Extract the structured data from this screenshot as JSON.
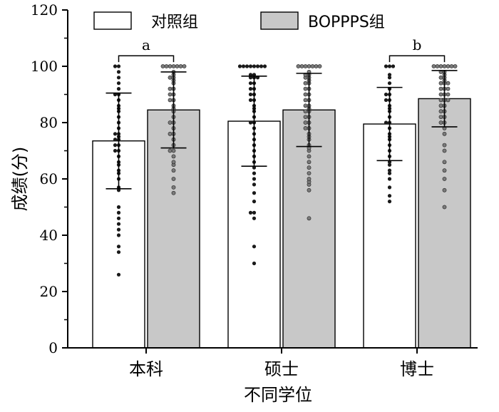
{
  "chart_data": {
    "type": "bar",
    "title": "",
    "xlabel": "不同学位",
    "ylabel": "成绩(分)",
    "ylim": [
      0,
      120
    ],
    "yticks": [
      0,
      20,
      40,
      60,
      80,
      100,
      120
    ],
    "categories": [
      "本科",
      "硕士",
      "博士"
    ],
    "legend": {
      "position": "top"
    },
    "colors": {
      "control": "#ffffff",
      "boppps": "#c8c8c8",
      "control_point": "#1a1a1a",
      "boppps_point": "#7a7a7a"
    },
    "series": [
      {
        "name": "对照组",
        "values": [
          73.5,
          80.5,
          79.5
        ],
        "sd": [
          17,
          16,
          13
        ],
        "points": [
          [
            26,
            34,
            36,
            40,
            42,
            44,
            46,
            48,
            50,
            56,
            57,
            60,
            62,
            63,
            65,
            66,
            68,
            70,
            70,
            72,
            72,
            74,
            74,
            75,
            76,
            76,
            78,
            80,
            82,
            84,
            85,
            86,
            88,
            90,
            90,
            92,
            94,
            96,
            98,
            100,
            100
          ],
          [
            30,
            36,
            46,
            48,
            48,
            52,
            55,
            58,
            60,
            62,
            64,
            66,
            68,
            70,
            72,
            74,
            76,
            78,
            80,
            80,
            82,
            84,
            85,
            86,
            88,
            88,
            90,
            90,
            92,
            92,
            94,
            94,
            96,
            96,
            96,
            97,
            97,
            100,
            100,
            100,
            100,
            100,
            100,
            100,
            100
          ],
          [
            52,
            54,
            57,
            60,
            62,
            63,
            65,
            66,
            68,
            70,
            72,
            74,
            75,
            76,
            78,
            80,
            80,
            82,
            84,
            85,
            86,
            88,
            88,
            90,
            90,
            92,
            94,
            96,
            97,
            100,
            100,
            100
          ]
        ]
      },
      {
        "name": "BOPPPS组",
        "values": [
          84.5,
          84.5,
          88.5
        ],
        "sd": [
          13.5,
          13,
          10
        ],
        "points": [
          [
            55,
            57,
            60,
            63,
            65,
            66,
            68,
            70,
            70,
            72,
            74,
            76,
            76,
            78,
            80,
            80,
            82,
            84,
            85,
            86,
            88,
            88,
            90,
            90,
            92,
            92,
            94,
            95,
            96,
            96,
            97,
            98,
            100,
            100,
            100,
            100,
            100,
            100,
            100
          ],
          [
            46,
            56,
            58,
            59,
            60,
            62,
            64,
            66,
            68,
            70,
            71,
            72,
            74,
            75,
            76,
            78,
            78,
            80,
            80,
            82,
            82,
            84,
            84,
            85,
            86,
            86,
            88,
            88,
            90,
            90,
            92,
            92,
            94,
            94,
            95,
            96,
            96,
            97,
            97,
            98,
            100,
            100,
            100,
            100,
            100,
            100,
            100
          ],
          [
            50,
            56,
            60,
            63,
            66,
            70,
            72,
            76,
            78,
            80,
            80,
            82,
            82,
            84,
            84,
            86,
            86,
            88,
            88,
            88,
            90,
            90,
            90,
            92,
            92,
            92,
            94,
            94,
            94,
            95,
            96,
            96,
            97,
            98,
            98,
            100,
            100,
            100,
            100,
            100,
            100,
            100
          ]
        ]
      }
    ],
    "annotations": [
      {
        "text": "a",
        "category_index": 0,
        "y": 104
      },
      {
        "text": "b",
        "category_index": 2,
        "y": 104
      }
    ]
  }
}
